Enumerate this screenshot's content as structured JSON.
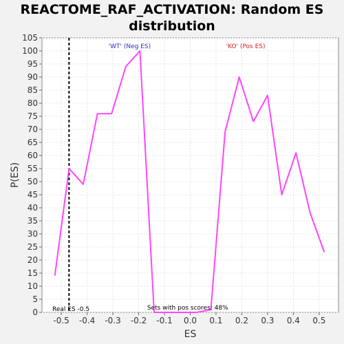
{
  "chart_data": {
    "type": "line",
    "title": "REACTOME_RAF_ACTIVATION: Random ES distribution",
    "xlabel": "ES",
    "ylabel": "P(ES)",
    "xlim": [
      -0.575,
      0.575
    ],
    "ylim": [
      0,
      105
    ],
    "x_ticks": [
      -0.5,
      -0.4,
      -0.3,
      -0.2,
      -0.1,
      0.0,
      0.1,
      0.2,
      0.3,
      0.4,
      0.5
    ],
    "x_tick_labels": [
      "-0.5",
      "-0.4",
      "-0.3",
      "-0.2",
      "-0.1",
      "0.0",
      "0.1",
      "0.2",
      "0.3",
      "0.4",
      "0.5"
    ],
    "y_ticks": [
      0,
      5,
      10,
      15,
      20,
      25,
      30,
      35,
      40,
      45,
      50,
      55,
      60,
      65,
      70,
      75,
      80,
      85,
      90,
      95,
      100,
      105
    ],
    "grid": true,
    "series": [
      {
        "color": "#ff44ff",
        "x": [
          -0.525,
          -0.47,
          -0.415,
          -0.36,
          -0.305,
          -0.25,
          -0.195,
          -0.14,
          -0.085,
          -0.03,
          0.025,
          0.08,
          0.135,
          0.19,
          0.245,
          0.3,
          0.355,
          0.41,
          0.465,
          0.52
        ],
        "y": [
          14,
          55,
          49,
          76,
          76,
          94,
          100,
          0,
          0,
          0,
          0,
          1,
          69,
          90,
          73,
          83,
          45,
          61,
          38,
          23
        ]
      }
    ],
    "real_es": -0.47,
    "annotations": {
      "neg_label": "'WT' (Neg ES)",
      "pos_label": "'KO' (Pos ES)",
      "real_es_label": "Real ES -0.5",
      "pos_scores_label": "Sets with pos scores: 48%"
    },
    "colors": {
      "neg_label": "#2b2bc0",
      "pos_label": "#e02020",
      "real_es_line": "#000000"
    }
  }
}
